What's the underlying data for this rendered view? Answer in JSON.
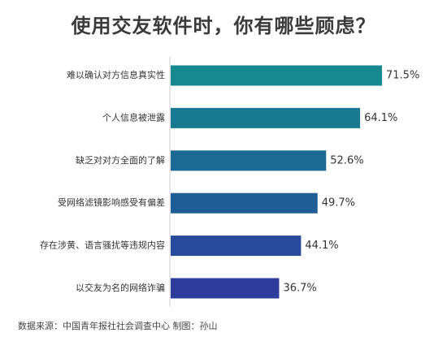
{
  "chart_data": {
    "type": "bar",
    "orientation": "horizontal",
    "title": "使用交友软件时，你有哪些顾虑？",
    "categories": [
      "难以确认对方信息真实性",
      "个人信息被泄露",
      "缺乏对对方全面的了解",
      "受网络滤镜影响感受有偏差",
      "存在涉黄、语言骚扰等违规内容",
      "以交友为名的网络诈骗"
    ],
    "values": [
      71.5,
      64.1,
      52.6,
      49.7,
      44.1,
      36.7
    ],
    "value_labels": [
      "71.5%",
      "64.1%",
      "52.6%",
      "49.7%",
      "44.1%",
      "36.7%"
    ],
    "bar_colors": [
      "#16888f",
      "#177a91",
      "#1a6a93",
      "#1f5d97",
      "#274a9b",
      "#2e3c9c"
    ],
    "xlim": [
      0,
      80
    ],
    "grid": false,
    "legend": "none",
    "source": "数据来源：中国青年报社社会调查中心 制图：孙山"
  }
}
